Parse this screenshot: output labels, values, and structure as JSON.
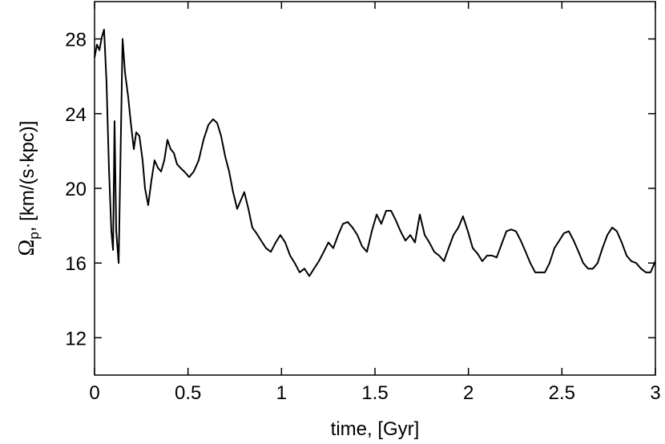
{
  "chart_data": {
    "type": "line",
    "x_label": "time, [Gyr]",
    "y_label": {
      "symbol": "Ω",
      "subscript": "p",
      "text": ", [km/(s·kpc)]"
    },
    "xlim": [
      0,
      3
    ],
    "ylim": [
      10,
      30
    ],
    "xticks": [
      0,
      0.5,
      1,
      1.5,
      2,
      2.5,
      3
    ],
    "yticks": [
      12,
      16,
      20,
      24,
      28
    ],
    "x": [
      0,
      0.013,
      0.026,
      0.039,
      0.051,
      0.064,
      0.077,
      0.09,
      0.099,
      0.107,
      0.116,
      0.129,
      0.137,
      0.15,
      0.163,
      0.18,
      0.193,
      0.21,
      0.223,
      0.24,
      0.257,
      0.27,
      0.287,
      0.304,
      0.321,
      0.339,
      0.356,
      0.373,
      0.39,
      0.407,
      0.424,
      0.441,
      0.459,
      0.48,
      0.506,
      0.531,
      0.557,
      0.583,
      0.609,
      0.634,
      0.656,
      0.677,
      0.699,
      0.72,
      0.741,
      0.763,
      0.784,
      0.801,
      0.823,
      0.844,
      0.866,
      0.891,
      0.917,
      0.943,
      0.969,
      0.994,
      1.02,
      1.046,
      1.071,
      1.097,
      1.123,
      1.149,
      1.174,
      1.2,
      1.226,
      1.251,
      1.277,
      1.303,
      1.329,
      1.354,
      1.38,
      1.406,
      1.431,
      1.457,
      1.483,
      1.509,
      1.534,
      1.56,
      1.586,
      1.611,
      1.637,
      1.663,
      1.689,
      1.714,
      1.74,
      1.766,
      1.791,
      1.817,
      1.843,
      1.869,
      1.894,
      1.92,
      1.946,
      1.971,
      1.997,
      2.023,
      2.049,
      2.074,
      2.1,
      2.126,
      2.151,
      2.177,
      2.203,
      2.229,
      2.254,
      2.28,
      2.306,
      2.331,
      2.357,
      2.383,
      2.409,
      2.434,
      2.46,
      2.486,
      2.511,
      2.537,
      2.563,
      2.589,
      2.614,
      2.64,
      2.666,
      2.691,
      2.717,
      2.743,
      2.769,
      2.794,
      2.82,
      2.846,
      2.871,
      2.897,
      2.923,
      2.949,
      2.974,
      3
    ],
    "series": [
      {
        "color": "#000000",
        "values": [
          27.0,
          27.7,
          27.4,
          28.1,
          28.5,
          25.7,
          21.1,
          17.7,
          16.7,
          23.6,
          17.7,
          16.0,
          20.6,
          28.0,
          26.2,
          24.9,
          23.6,
          22.1,
          23.0,
          22.8,
          21.5,
          20.0,
          19.1,
          20.4,
          21.5,
          21.1,
          20.9,
          21.5,
          22.6,
          22.1,
          21.9,
          21.3,
          21.1,
          20.9,
          20.6,
          20.9,
          21.5,
          22.6,
          23.4,
          23.7,
          23.5,
          22.8,
          21.7,
          20.9,
          19.8,
          18.9,
          19.4,
          19.8,
          18.9,
          17.9,
          17.6,
          17.2,
          16.8,
          16.6,
          17.1,
          17.5,
          17.1,
          16.4,
          16.0,
          15.5,
          15.7,
          15.3,
          15.7,
          16.1,
          16.6,
          17.1,
          16.8,
          17.5,
          18.1,
          18.2,
          17.9,
          17.5,
          16.9,
          16.6,
          17.7,
          18.6,
          18.1,
          18.8,
          18.8,
          18.3,
          17.7,
          17.2,
          17.5,
          17.1,
          18.6,
          17.5,
          17.1,
          16.6,
          16.4,
          16.1,
          16.8,
          17.5,
          17.9,
          18.5,
          17.7,
          16.8,
          16.5,
          16.1,
          16.4,
          16.4,
          16.3,
          17.0,
          17.7,
          17.8,
          17.7,
          17.2,
          16.6,
          16.0,
          15.5,
          15.5,
          15.5,
          16.0,
          16.8,
          17.2,
          17.6,
          17.7,
          17.2,
          16.6,
          16.0,
          15.7,
          15.7,
          16.0,
          16.8,
          17.5,
          17.9,
          17.7,
          17.1,
          16.4,
          16.1,
          16.0,
          15.7,
          15.5,
          15.5,
          16.1
        ]
      }
    ]
  }
}
